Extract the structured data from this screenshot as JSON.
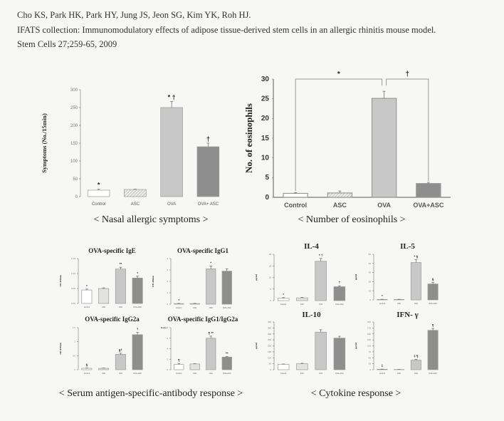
{
  "citation": {
    "authors": "Cho KS, Park HK, Park HY, Jung JS, Jeon SG, Kim YK, Roh HJ.",
    "title": "IFATS collection: Immunomodulatory effects of adipose tissue-derived stem cells in an allergic rhinitis mouse model.",
    "journal": "Stem Cells 27;259-65, 2009"
  },
  "captions": {
    "nasal": "< Nasal allergic symptoms >",
    "eosinophils": "< Number of eosinophils >",
    "antibody": "< Serum antigen-specific-antibody response >",
    "cytokine": "< Cytokine response >"
  },
  "colors": {
    "control": "#ffffff",
    "asc": "#e2e2e2",
    "ova": "#c8c8c8",
    "ova_asc": "#8e8e8e",
    "axis": "#888888"
  },
  "chart_data": [
    {
      "id": "nasal",
      "type": "bar",
      "title": "",
      "ylabel": "Symptoms (No./15min)",
      "categories": [
        "Control",
        "ASC",
        "OVA",
        "OVA+ ASC"
      ],
      "values": [
        18,
        20,
        250,
        140
      ],
      "errors": [
        3,
        1,
        17,
        10
      ],
      "annotations": [
        "*",
        "",
        "* †",
        "†"
      ],
      "ylim": [
        0,
        300
      ],
      "yticks": [
        "0",
        "50",
        "100",
        "150",
        "200",
        "250",
        "300"
      ]
    },
    {
      "id": "eosinophils",
      "type": "bar",
      "title": "",
      "ylabel": "No. of  eosinophils",
      "categories": [
        "Control",
        "ASC",
        "OVA",
        "OVA+ASC"
      ],
      "values": [
        1,
        1.1,
        25.1,
        3.5
      ],
      "errors": [
        0.2,
        0.5,
        1.8,
        0.3
      ],
      "annotations": [
        "",
        "",
        "",
        ""
      ],
      "brackets": [
        {
          "from": 0,
          "to": 2,
          "label": "*"
        },
        {
          "from": 2,
          "to": 3,
          "label": "†"
        }
      ],
      "ylim": [
        0,
        30
      ],
      "yticks": [
        "0",
        "5",
        "10",
        "15",
        "20",
        "25",
        "30"
      ]
    },
    {
      "id": "ige",
      "type": "bar",
      "title": "OVA-specific IgE",
      "ylabel": "OD 450nm",
      "categories": [
        "Control",
        "ASC",
        "OVA",
        "OVA+ASC"
      ],
      "values": [
        0.045,
        0.05,
        0.115,
        0.085
      ],
      "errors": [
        0.003,
        0.002,
        0.006,
        0.006
      ],
      "annotations": [
        "*",
        "",
        "**",
        "*"
      ],
      "ylim": [
        0,
        0.15
      ],
      "yticks": [
        "0.00",
        "0.05",
        "0.10",
        "0.15"
      ]
    },
    {
      "id": "igg1",
      "type": "bar",
      "title": "OVA-specific IgG1",
      "ylabel": "OD 450nm",
      "categories": [
        "Control",
        "ASC",
        "OVA",
        "OVA+ASC"
      ],
      "values": [
        0.05,
        0.05,
        3.1,
        2.9
      ],
      "errors": [
        0.02,
        0.02,
        0.25,
        0.2
      ],
      "annotations": [
        "*",
        "",
        "*",
        ""
      ],
      "ylim": [
        0,
        4
      ],
      "yticks": [
        "0",
        "1",
        "2",
        "3",
        "4"
      ]
    },
    {
      "id": "igg2a",
      "type": "bar",
      "title": "OVA-specific IgG2a",
      "ylabel": "OD 450nm",
      "categories": [
        "Control",
        "ASC",
        "OVA",
        "OVA+ASC"
      ],
      "values": [
        0.05,
        0.05,
        0.55,
        1.25
      ],
      "errors": [
        0.01,
        0.01,
        0.04,
        0.08
      ],
      "annotations": [
        "§",
        "",
        "§†",
        "†"
      ],
      "ylim": [
        0,
        1.5
      ],
      "yticks": [
        "0",
        "0.5",
        "1",
        "1.5"
      ]
    },
    {
      "id": "ratio",
      "type": "bar",
      "title": "OVA-specific IgG1/IgG2a",
      "ylabel": "Ratio",
      "categories": [
        "Control",
        "ASC",
        "OVA",
        "OVA+ASC"
      ],
      "values": [
        1,
        1.1,
        6,
        2.4
      ],
      "errors": [
        0.2,
        0.05,
        0.4,
        0.1
      ],
      "annotations": [
        "¶",
        "",
        "¶ **",
        "**"
      ],
      "ylim": [
        0,
        8
      ],
      "yticks": [
        "0",
        "2",
        "4",
        "6",
        "8"
      ]
    },
    {
      "id": "il4",
      "type": "bar",
      "title": "IL-4",
      "ylabel": "pg/ml",
      "categories": [
        "Control",
        "ASC",
        "OVA",
        "OVA+ASC"
      ],
      "values": [
        1,
        1.2,
        17,
        6
      ],
      "errors": [
        0.3,
        0.2,
        1.2,
        0.4
      ],
      "annotations": [
        "*",
        "",
        "* †",
        "†"
      ],
      "ylim": [
        0,
        20
      ],
      "yticks": [
        "0",
        "5",
        "10",
        "15",
        "20"
      ]
    },
    {
      "id": "il5",
      "type": "bar",
      "title": "IL-5",
      "ylabel": "pg/ml",
      "categories": [
        "Control",
        "ASC",
        "OVA",
        "OVA+ASC"
      ],
      "values": [
        0.5,
        0.5,
        41,
        17.5
      ],
      "errors": [
        0.2,
        0.2,
        3,
        1.5
      ],
      "annotations": [
        "*",
        "",
        "* §",
        "§"
      ],
      "ylim": [
        0,
        50
      ],
      "yticks": [
        "0",
        "10",
        "20",
        "30",
        "40",
        "50"
      ]
    },
    {
      "id": "il10",
      "type": "bar",
      "title": "IL-10",
      "ylabel": "pg/ml",
      "categories": [
        "Control",
        "ASC",
        "OVA",
        "OVA+ASC"
      ],
      "values": [
        45,
        50,
        315,
        265
      ],
      "errors": [
        3,
        4,
        20,
        15
      ],
      "annotations": [
        "",
        "",
        "",
        ""
      ],
      "ylim": [
        0,
        400
      ],
      "yticks": [
        "0",
        "50",
        "100",
        "150",
        "200",
        "250",
        "300",
        "350",
        "400"
      ]
    },
    {
      "id": "ifng",
      "type": "bar",
      "title": "IFN- γ",
      "ylabel": "pg/ml",
      "categories": [
        "Control",
        "ASC",
        "OVA",
        "OVA+ASC"
      ],
      "values": [
        2,
        1,
        40,
        165
      ],
      "errors": [
        0.5,
        0.3,
        3,
        8
      ],
      "annotations": [
        "‡",
        "",
        "‡ ¶",
        "¶"
      ],
      "ylim": [
        0,
        200
      ],
      "yticks": [
        "0",
        "25",
        "50",
        "75",
        "100",
        "125",
        "150",
        "175",
        "200"
      ]
    }
  ]
}
